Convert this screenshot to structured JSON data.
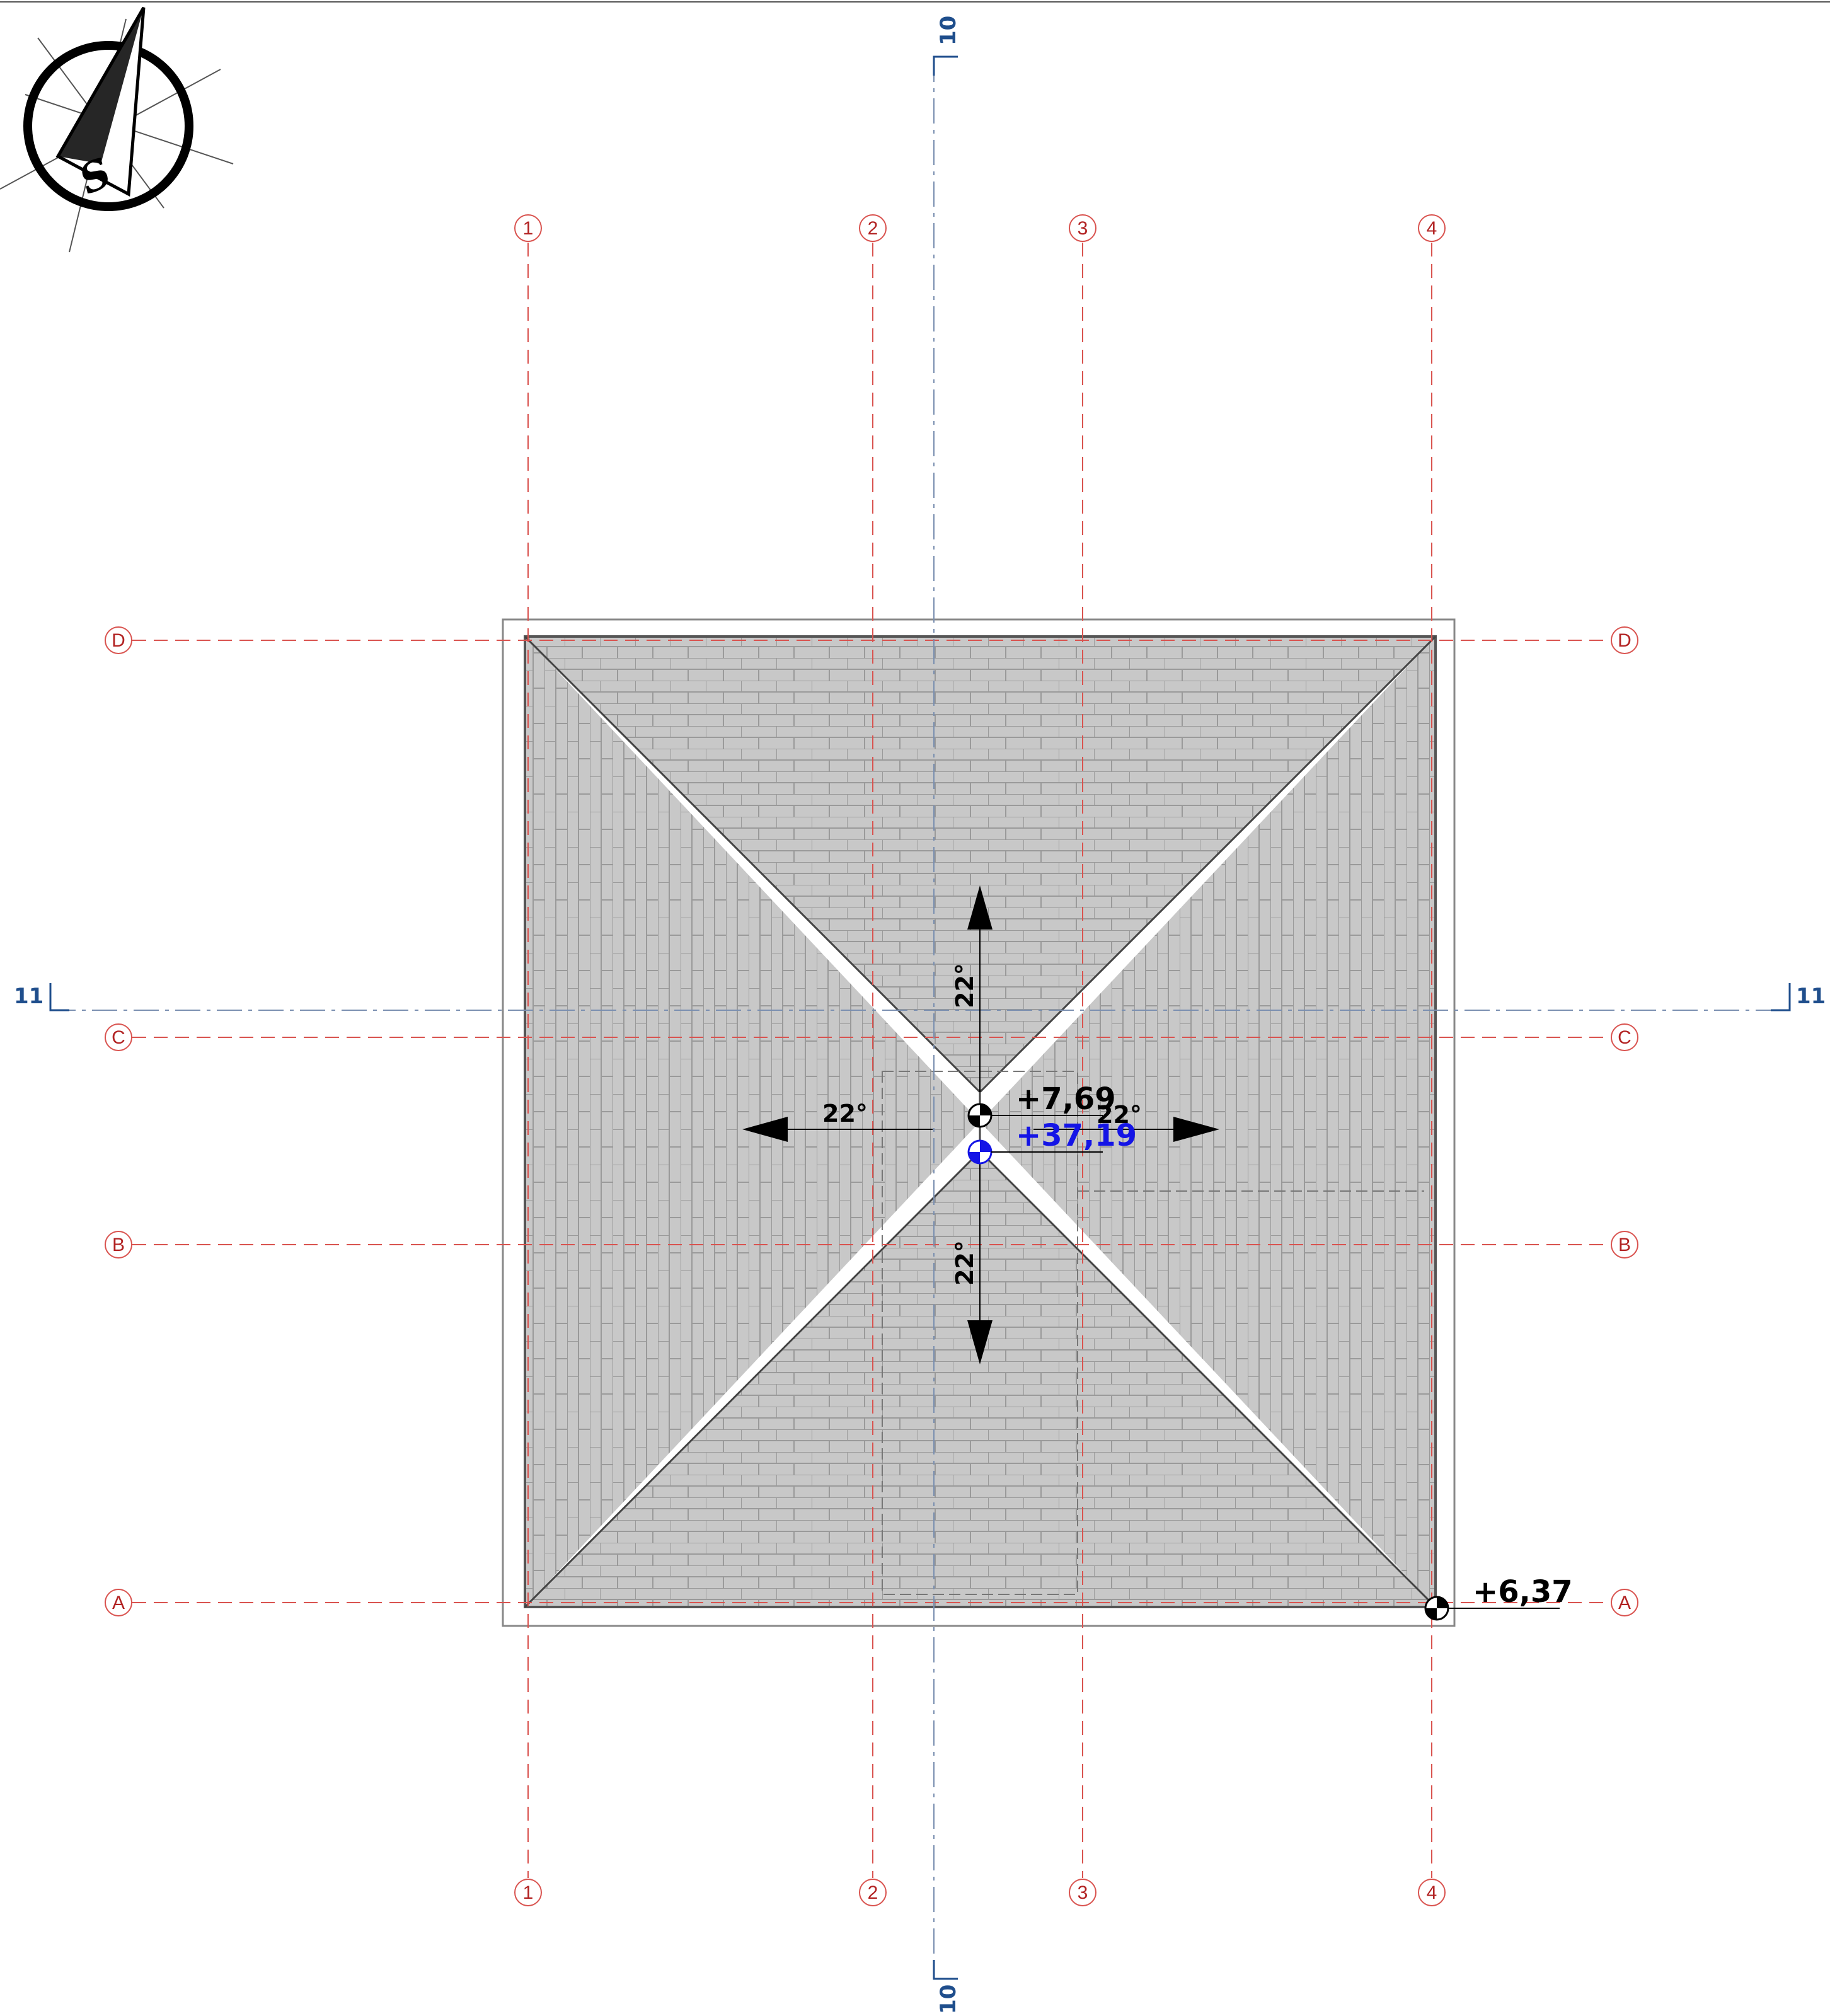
{
  "grid": {
    "vertical": [
      "1",
      "2",
      "3",
      "4"
    ],
    "horizontal": [
      "A",
      "B",
      "C",
      "D"
    ]
  },
  "sections": {
    "vertical_cut": "10",
    "horizontal_cut": "11"
  },
  "compass": {
    "letter": "S"
  },
  "slopes": {
    "north": "22°",
    "west": "22°",
    "east": "22°",
    "south": "22°"
  },
  "levels": {
    "ridge_relative": "+7,69",
    "ridge_absolute": "+37,19",
    "eave_corner": "+6,37"
  },
  "colors": {
    "grid_line": "#d9534f",
    "grid_text": "#b22222",
    "section": "#1f4e8c",
    "roof_fill": "#c8c8c8",
    "tile_line": "#9a9a9a",
    "absolute_level": "#1414e6"
  }
}
